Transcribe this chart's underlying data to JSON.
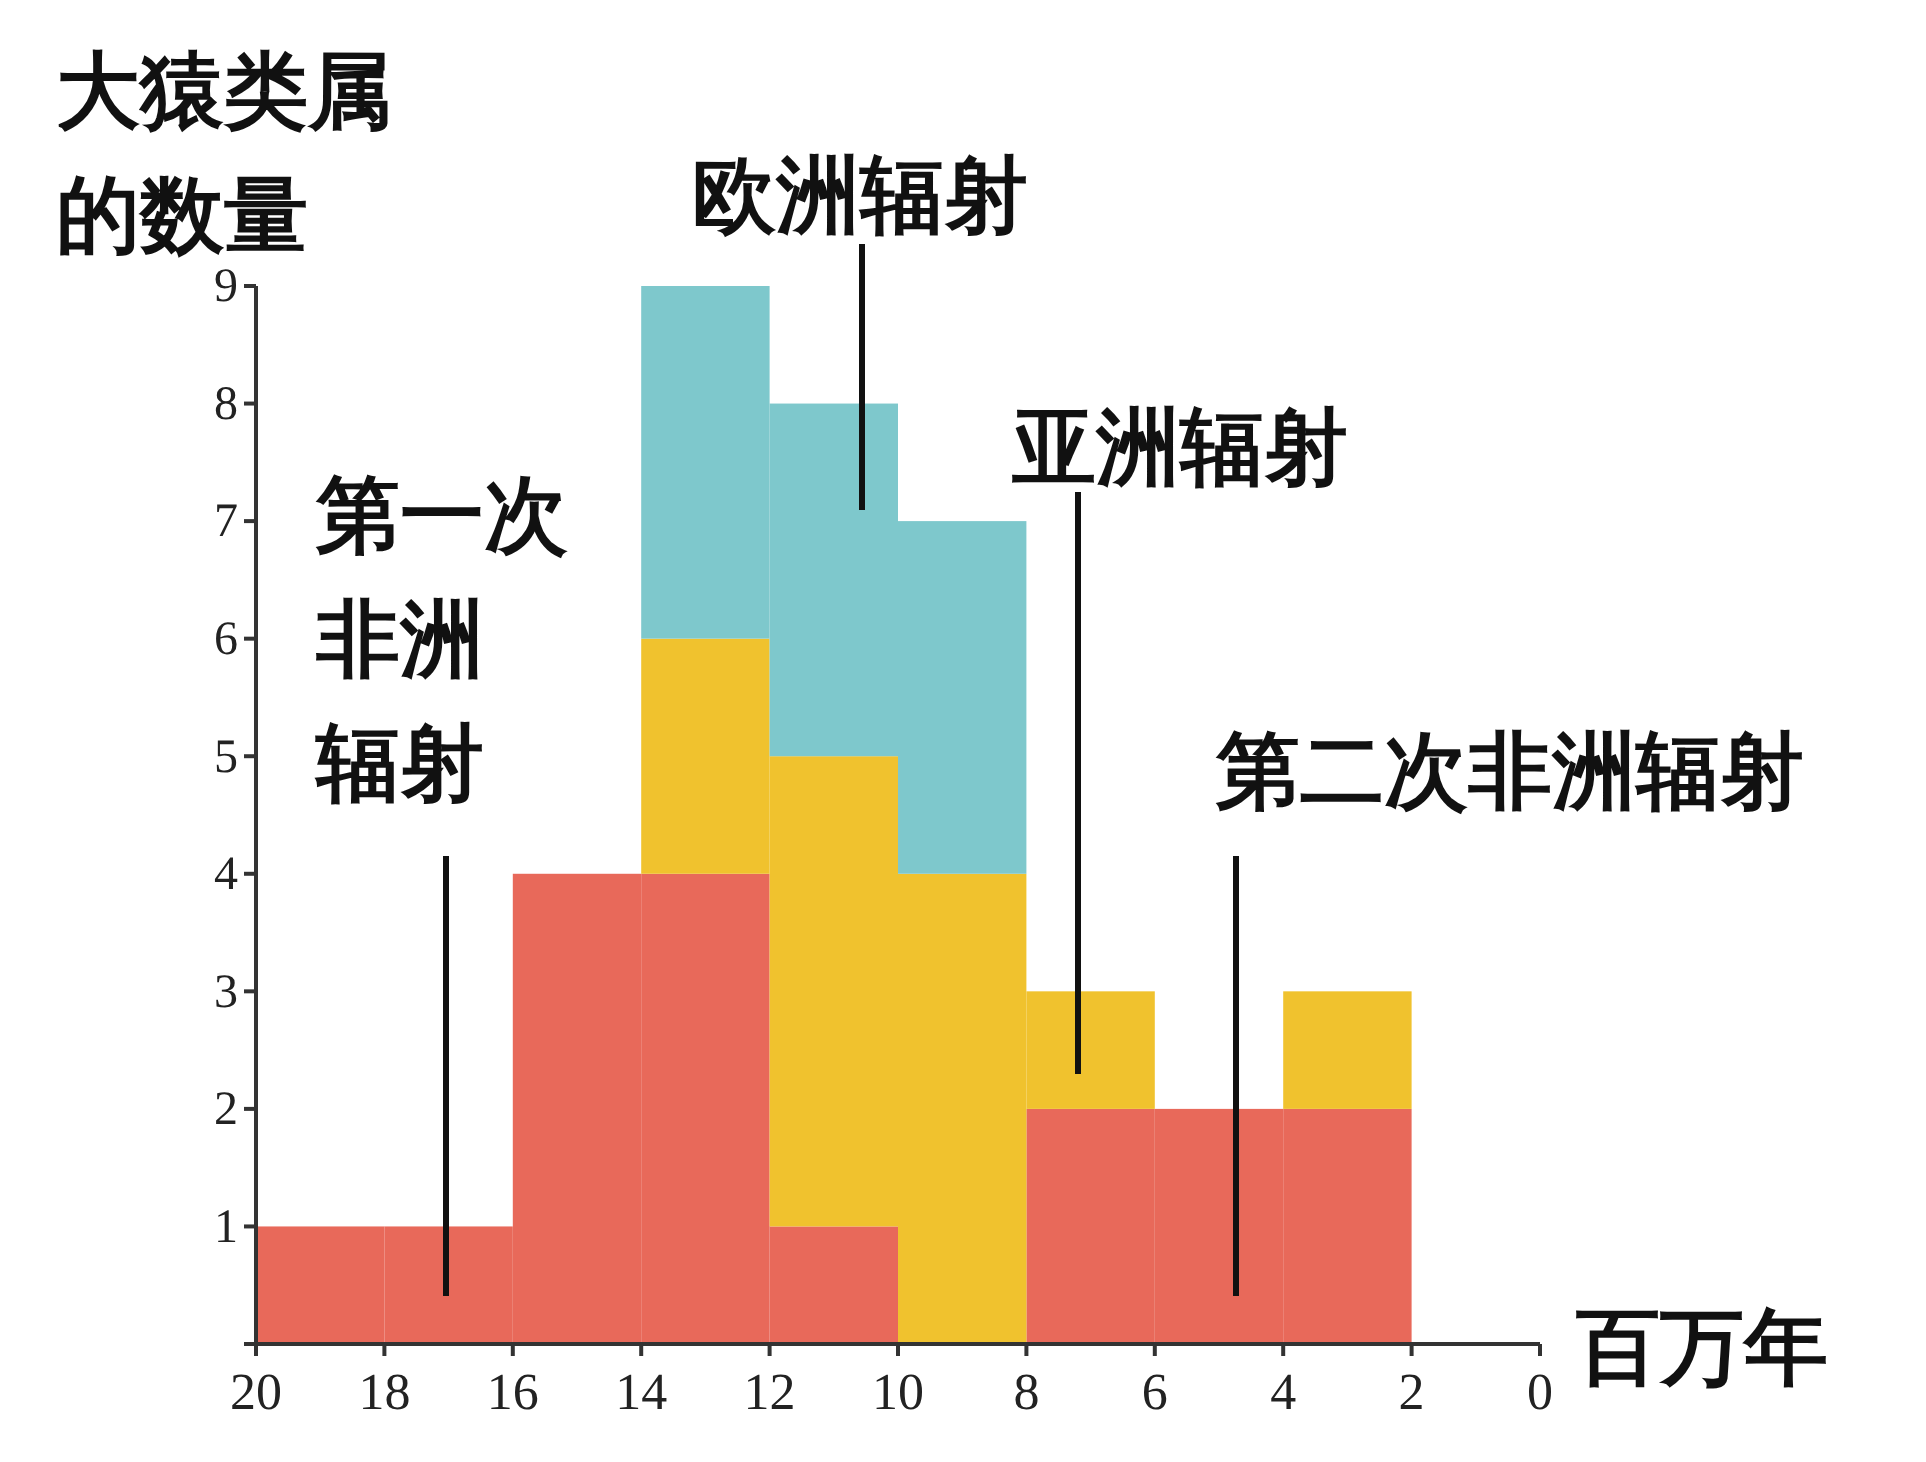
{
  "chart_data": {
    "type": "bar",
    "ylabel": "大猿类属的数量",
    "xlabel": "百万年",
    "x": [
      19,
      17,
      15,
      13,
      11,
      9,
      7,
      5,
      3
    ],
    "stacked": true,
    "series": [
      {
        "color": "#e8695a",
        "values": [
          1,
          1,
          4,
          4,
          1,
          0,
          2,
          2,
          2
        ]
      },
      {
        "color": "#f0c22e",
        "values": [
          0,
          0,
          0,
          2,
          4,
          4,
          1,
          0,
          1
        ]
      },
      {
        "color": "#7ec8cc",
        "values": [
          0,
          0,
          0,
          3,
          3,
          3,
          0,
          0,
          0
        ]
      }
    ],
    "xlim": [
      20,
      0
    ],
    "xticks": [
      20,
      18,
      16,
      14,
      12,
      10,
      8,
      6,
      4,
      2,
      0
    ],
    "ylim": [
      0,
      9
    ],
    "yticks": [
      {
        "value": 0,
        "label": null
      },
      1,
      2,
      3,
      4,
      5,
      6,
      7,
      8,
      9
    ],
    "annotations": [
      "第一次非洲辐射",
      "欧洲辐射",
      "亚洲辐射",
      "第二次非洲辐射"
    ]
  }
}
